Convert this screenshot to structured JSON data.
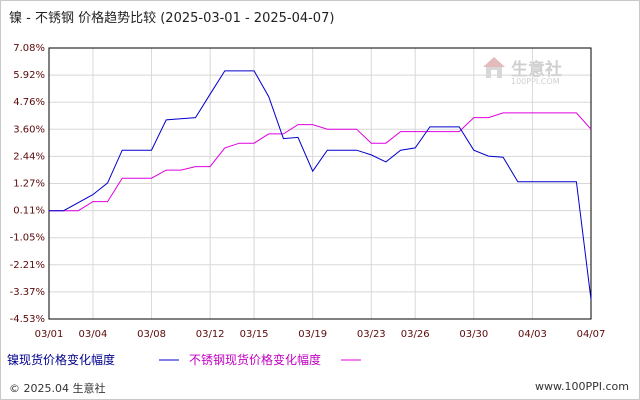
{
  "title": "镍 - 不锈钢 价格趋势比较 (2025-03-01 - 2025-04-07)",
  "footer": {
    "copyright": "© 2025.04 生意社",
    "site": "www.100PPI.com"
  },
  "logo": {
    "name": "生意社",
    "url": "100PPI.COM"
  },
  "colors": {
    "series1": "#0000cc",
    "series2": "#e000e0",
    "grid": "#d8d8d8",
    "axis": "#000000"
  },
  "chart_data": {
    "type": "line",
    "ylim": [
      -4.53,
      7.08
    ],
    "xlim": [
      0,
      37
    ],
    "yticks": [
      "7.08%",
      "5.92%",
      "4.76%",
      "3.60%",
      "2.44%",
      "1.27%",
      "0.11%",
      "-1.05%",
      "-2.21%",
      "-3.37%",
      "-4.53%"
    ],
    "xticks": [
      {
        "label": "03/01",
        "day": 0
      },
      {
        "label": "03/04",
        "day": 3
      },
      {
        "label": "03/08",
        "day": 7
      },
      {
        "label": "03/12",
        "day": 11
      },
      {
        "label": "03/15",
        "day": 14
      },
      {
        "label": "03/19",
        "day": 18
      },
      {
        "label": "03/23",
        "day": 22
      },
      {
        "label": "03/26",
        "day": 25
      },
      {
        "label": "03/30",
        "day": 29
      },
      {
        "label": "04/03",
        "day": 33
      },
      {
        "label": "04/07",
        "day": 37
      }
    ],
    "series": [
      {
        "name": "镍现货价格变化幅度",
        "points": [
          [
            0,
            0.11
          ],
          [
            1,
            0.11
          ],
          [
            3,
            0.8
          ],
          [
            4,
            1.3
          ],
          [
            5,
            2.7
          ],
          [
            6,
            2.7
          ],
          [
            7,
            2.7
          ],
          [
            8,
            4.0
          ],
          [
            9,
            4.05
          ],
          [
            10,
            4.1
          ],
          [
            11,
            5.1
          ],
          [
            12,
            6.1
          ],
          [
            13,
            6.1
          ],
          [
            14,
            6.1
          ],
          [
            15,
            5.0
          ],
          [
            16,
            3.2
          ],
          [
            17,
            3.25
          ],
          [
            18,
            1.8
          ],
          [
            19,
            2.7
          ],
          [
            20,
            2.7
          ],
          [
            21,
            2.7
          ],
          [
            22,
            2.5
          ],
          [
            23,
            2.2
          ],
          [
            24,
            2.7
          ],
          [
            25,
            2.8
          ],
          [
            26,
            3.7
          ],
          [
            27,
            3.7
          ],
          [
            28,
            3.7
          ],
          [
            29,
            2.7
          ],
          [
            30,
            2.45
          ],
          [
            31,
            2.4
          ],
          [
            32,
            1.35
          ],
          [
            33,
            1.35
          ],
          [
            34,
            1.35
          ],
          [
            35,
            1.35
          ],
          [
            36,
            1.35
          ],
          [
            37,
            -3.7
          ]
        ]
      },
      {
        "name": "不锈钢现货价格变化幅度",
        "points": [
          [
            0,
            0.11
          ],
          [
            1,
            0.11
          ],
          [
            2,
            0.11
          ],
          [
            3,
            0.5
          ],
          [
            4,
            0.5
          ],
          [
            5,
            1.5
          ],
          [
            6,
            1.5
          ],
          [
            7,
            1.5
          ],
          [
            8,
            1.85
          ],
          [
            9,
            1.85
          ],
          [
            10,
            2.0
          ],
          [
            11,
            2.0
          ],
          [
            12,
            2.8
          ],
          [
            13,
            3.0
          ],
          [
            14,
            3.0
          ],
          [
            15,
            3.4
          ],
          [
            16,
            3.4
          ],
          [
            17,
            3.8
          ],
          [
            18,
            3.8
          ],
          [
            19,
            3.6
          ],
          [
            20,
            3.6
          ],
          [
            21,
            3.6
          ],
          [
            22,
            3.0
          ],
          [
            23,
            3.0
          ],
          [
            24,
            3.5
          ],
          [
            25,
            3.5
          ],
          [
            26,
            3.5
          ],
          [
            27,
            3.5
          ],
          [
            28,
            3.5
          ],
          [
            29,
            4.1
          ],
          [
            30,
            4.1
          ],
          [
            31,
            4.3
          ],
          [
            32,
            4.3
          ],
          [
            33,
            4.3
          ],
          [
            34,
            4.3
          ],
          [
            35,
            4.3
          ],
          [
            36,
            4.3
          ],
          [
            37,
            3.6
          ]
        ]
      }
    ]
  }
}
